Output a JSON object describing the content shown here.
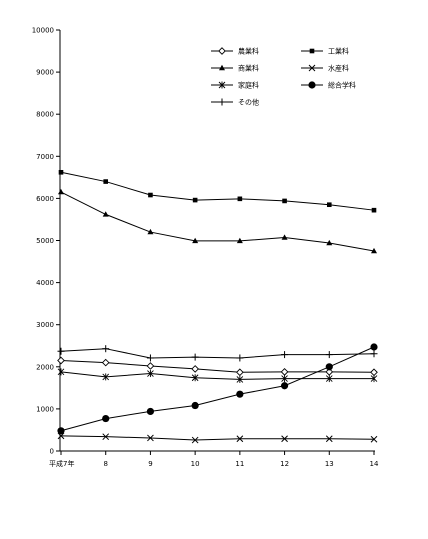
{
  "chart_data": {
    "type": "line",
    "x": [
      "平成7年",
      "8",
      "9",
      "10",
      "11",
      "12",
      "13",
      "14"
    ],
    "ylim": [
      0,
      10000
    ],
    "yticks": [
      0,
      1000,
      2000,
      3000,
      4000,
      5000,
      6000,
      7000,
      8000,
      9000,
      10000
    ],
    "grid": false,
    "legend_position": "top-right",
    "series": [
      {
        "name": "農業科",
        "marker": "diamond-open",
        "values": [
          2150,
          2100,
          2020,
          1950,
          1870,
          1880,
          1880,
          1870
        ]
      },
      {
        "name": "工業科",
        "marker": "square",
        "values": [
          6620,
          6400,
          6080,
          5960,
          5990,
          5940,
          5850,
          5720
        ]
      },
      {
        "name": "商業科",
        "marker": "triangle",
        "values": [
          6150,
          5620,
          5200,
          4990,
          4990,
          5070,
          4940,
          4750
        ]
      },
      {
        "name": "水産科",
        "marker": "x",
        "values": [
          360,
          340,
          310,
          260,
          290,
          290,
          290,
          280
        ]
      },
      {
        "name": "家庭科",
        "marker": "asterisk",
        "values": [
          1880,
          1760,
          1840,
          1740,
          1700,
          1720,
          1720,
          1720
        ]
      },
      {
        "name": "総合学科",
        "marker": "circle",
        "values": [
          480,
          770,
          940,
          1080,
          1350,
          1550,
          2000,
          2470
        ]
      },
      {
        "name": "その他",
        "marker": "plus",
        "values": [
          2370,
          2430,
          2210,
          2230,
          2210,
          2290,
          2290,
          2310
        ]
      }
    ]
  }
}
